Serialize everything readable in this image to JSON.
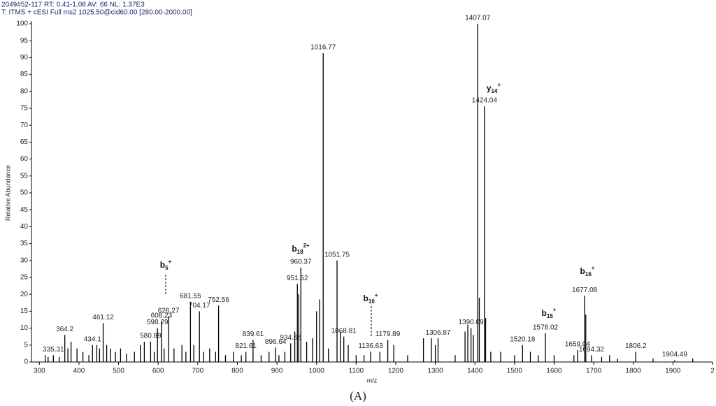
{
  "chart_data": {
    "type": "spectrum",
    "header": [
      "2049#52-117  RT: 0.41-1.08  AV: 66  NL: 1.37E3",
      "T: ITMS + cESI Full ms2 1025.50@cid60.00 [280.00-2000.00]"
    ],
    "xlabel": "m/z",
    "ylabel": "Relative Abundance",
    "caption": "(A)",
    "xlim": [
      280,
      2000
    ],
    "ylim": [
      0,
      100
    ],
    "xticks": [
      300,
      400,
      500,
      600,
      700,
      800,
      900,
      1000,
      1100,
      1200,
      1300,
      1400,
      1500,
      1600,
      1700,
      1800,
      1900,
      {
        "value": 2000,
        "label": "2"
      }
    ],
    "yticks": [
      0,
      5,
      10,
      15,
      20,
      25,
      30,
      35,
      40,
      45,
      50,
      55,
      60,
      65,
      70,
      75,
      80,
      85,
      90,
      95,
      100
    ],
    "color": "#000000",
    "labeled_peaks": {
      "x": [
        335.31,
        364.2,
        434.1,
        461.12,
        580.89,
        598.29,
        608.23,
        626.27,
        681.55,
        704.17,
        752.56,
        821.61,
        839.61,
        896.64,
        934.66,
        951.52,
        960.37,
        1016.77,
        1051.75,
        1068.81,
        1136.63,
        1179.89,
        1306.87,
        1390.09,
        1407.07,
        1424.04,
        1520.18,
        1578.02,
        1659.04,
        1677.08,
        1694.32,
        1806.2,
        1904.49
      ],
      "values": [
        2,
        8,
        5,
        11.5,
        6,
        10,
        12,
        13.5,
        17.8,
        15,
        16.7,
        3,
        6.5,
        4.3,
        5.5,
        23.1,
        27.9,
        91.3,
        30,
        7.5,
        3,
        6.5,
        7,
        10,
        100,
        75.6,
        5,
        8.5,
        3.5,
        19.6,
        2,
        3,
        0.5
      ]
    },
    "other_peaks": {
      "x": [
        315,
        322,
        350,
        372,
        380,
        395,
        410,
        425,
        445,
        452,
        470,
        480,
        492,
        505,
        520,
        540,
        555,
        565,
        590,
        615,
        640,
        660,
        670,
        690,
        715,
        730,
        745,
        770,
        790,
        810,
        860,
        880,
        905,
        920,
        945,
        955,
        975,
        990,
        1000,
        1008,
        1030,
        1060,
        1080,
        1100,
        1120,
        1160,
        1195,
        1230,
        1270,
        1290,
        1300,
        1350,
        1375,
        1382,
        1396,
        1411,
        1427,
        1440,
        1465,
        1500,
        1540,
        1560,
        1600,
        1650,
        1680,
        1720,
        1740,
        1760,
        1850,
        1950
      ],
      "values": [
        2,
        1.5,
        1.5,
        4,
        6,
        4,
        3,
        2,
        5,
        4,
        5,
        4,
        3,
        4,
        2.5,
        3,
        5,
        6,
        3,
        4,
        4,
        5,
        3,
        5,
        3,
        4,
        3,
        2,
        3,
        2,
        2,
        3,
        2,
        3,
        9,
        20,
        6,
        7,
        15,
        18.5,
        4,
        9,
        5,
        2,
        2,
        3,
        5,
        2,
        7,
        7,
        5,
        2,
        9,
        11,
        8,
        19,
        13,
        3,
        3,
        2,
        3,
        2,
        2,
        2,
        14,
        1.5,
        2,
        1,
        1,
        1
      ]
    },
    "annotations": [
      {
        "ion": "b",
        "sub": "5",
        "sup": "+"
      },
      {
        "ion": "b",
        "sub": "18",
        "sup": "2+"
      },
      {
        "ion": "y",
        "sub": "14",
        "sup": "+"
      },
      {
        "ion": "b",
        "sub": "10",
        "sup": "+"
      },
      {
        "ion": "b",
        "sub": "15",
        "sup": "+"
      },
      {
        "ion": "b",
        "sub": "16",
        "sup": "+"
      }
    ]
  }
}
